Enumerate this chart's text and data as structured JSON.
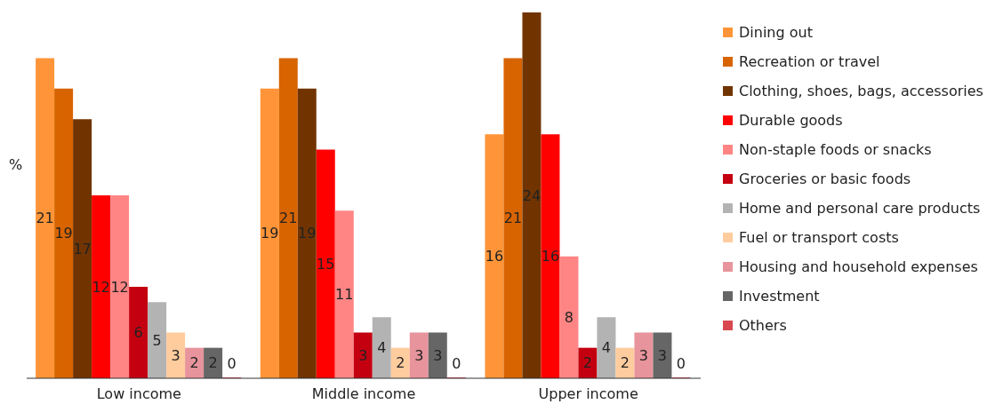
{
  "chart_data": {
    "type": "bar",
    "ylabel": "%",
    "categories": [
      "Low income",
      "Middle income",
      "Upper income"
    ],
    "series": [
      {
        "name": "Dining out",
        "color": "#ff9538",
        "values": [
          21,
          19,
          16
        ]
      },
      {
        "name": "Recreation or travel",
        "color": "#d86400",
        "values": [
          19,
          21,
          21
        ]
      },
      {
        "name": "Clothing, shoes, bags, accessories",
        "color": "#713400",
        "values": [
          17,
          19,
          24
        ]
      },
      {
        "name": "Durable goods",
        "color": "#ff0000",
        "values": [
          12,
          15,
          16
        ]
      },
      {
        "name": "Non-staple foods or snacks",
        "color": "#ff8585",
        "values": [
          12,
          11,
          8
        ]
      },
      {
        "name": "Groceries or basic foods",
        "color": "#c40010",
        "values": [
          6,
          3,
          2
        ]
      },
      {
        "name": "Home and personal care products",
        "color": "#b3b3b3",
        "values": [
          5,
          4,
          4
        ]
      },
      {
        "name": "Fuel or transport costs",
        "color": "#ffcc9e",
        "values": [
          3,
          2,
          2
        ]
      },
      {
        "name": "Housing and household expenses",
        "color": "#e8949c",
        "values": [
          2,
          3,
          3
        ]
      },
      {
        "name": "Investment",
        "color": "#666666",
        "values": [
          2,
          3,
          3
        ]
      },
      {
        "name": "Others",
        "color": "#d9474f",
        "values": [
          0,
          0,
          0
        ]
      }
    ],
    "data_labels": true,
    "legend": "right",
    "grid": false
  }
}
